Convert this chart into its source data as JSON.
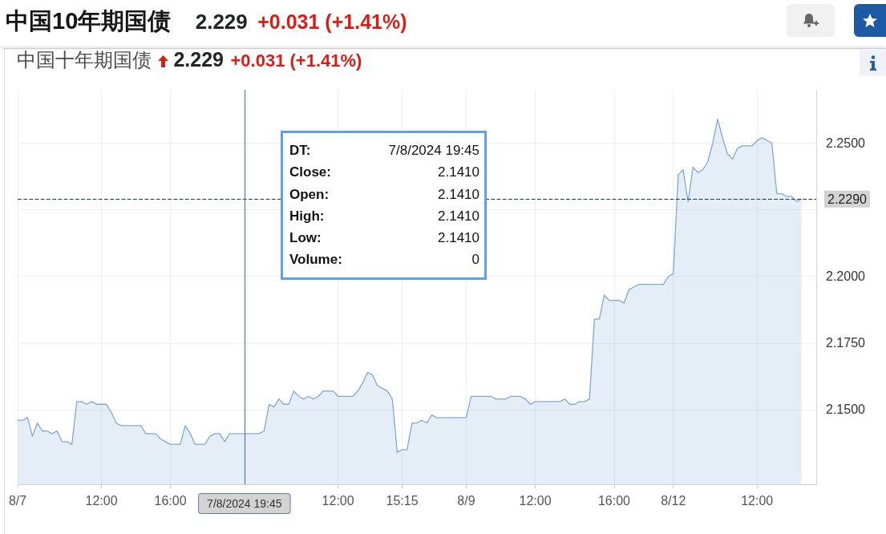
{
  "chart_data": {
    "type": "area",
    "title": "中国10年期国债 2.229 +0.031 (+1.41%)",
    "subtitle": "中国十年期国债 2.229 +0.031 (+1.41%)",
    "annotations": [
      "DT: 7/8/2024 19:45",
      "Close: 2.1410",
      "Open: 2.1410",
      "High: 2.1410",
      "Low: 2.1410",
      "Volume: 0"
    ],
    "categories": [
      "8/7",
      null,
      null,
      null,
      null,
      null,
      null,
      null,
      null,
      null,
      null,
      null,
      null,
      null,
      null,
      null,
      null,
      "12:00",
      null,
      null,
      null,
      null,
      null,
      null,
      null,
      null,
      null,
      null,
      null,
      null,
      null,
      "16:00",
      null,
      null,
      null,
      null,
      null,
      null,
      null,
      null,
      null,
      null,
      null,
      null,
      null,
      null,
      "7/8/2024 19:45",
      null,
      null,
      null,
      null,
      null,
      null,
      null,
      null,
      null,
      null,
      null,
      null,
      null,
      null,
      null,
      null,
      null,
      null,
      "12:00",
      null,
      null,
      null,
      null,
      null,
      null,
      null,
      null,
      null,
      null,
      null,
      null,
      "15:15",
      null,
      null,
      null,
      null,
      null,
      null,
      null,
      null,
      null,
      null,
      null,
      null,
      "8/9",
      null,
      null,
      null,
      null,
      null,
      null,
      null,
      null,
      null,
      null,
      null,
      null,
      null,
      "12:00",
      null,
      null,
      null,
      null,
      null,
      null,
      null,
      null,
      null,
      null,
      null,
      null,
      null,
      null,
      null,
      "16:00",
      null,
      null,
      null,
      null,
      null,
      null,
      null,
      null,
      null,
      null,
      null,
      "8/12",
      null,
      null,
      null,
      null,
      null,
      null,
      null,
      null,
      null,
      null,
      null,
      null,
      null,
      null,
      null,
      null,
      "12:00",
      null,
      null,
      null,
      null,
      null,
      null,
      null,
      null,
      null
    ],
    "series": [
      {
        "color": "#7eaad1",
        "values": [
          2.146,
          2.146,
          2.147,
          2.14,
          2.145,
          2.142,
          2.142,
          2.141,
          2.142,
          2.138,
          2.138,
          2.137,
          2.153,
          2.153,
          2.152,
          2.153,
          2.152,
          2.152,
          2.152,
          2.149,
          2.145,
          2.144,
          2.144,
          2.144,
          2.144,
          2.144,
          2.141,
          2.141,
          2.141,
          2.139,
          2.138,
          2.137,
          2.137,
          2.137,
          2.144,
          2.141,
          2.137,
          2.137,
          2.137,
          2.14,
          2.141,
          2.141,
          2.138,
          2.141,
          2.141,
          2.141,
          2.141,
          2.141,
          2.141,
          2.141,
          2.142,
          2.152,
          2.151,
          2.154,
          2.152,
          2.152,
          2.157,
          2.155,
          2.154,
          2.155,
          2.154,
          2.155,
          2.157,
          2.157,
          2.157,
          2.155,
          2.155,
          2.155,
          2.155,
          2.157,
          2.16,
          2.164,
          2.163,
          2.159,
          2.158,
          2.157,
          2.154,
          2.134,
          2.135,
          2.135,
          2.145,
          2.145,
          2.146,
          2.145,
          2.148,
          2.147,
          2.147,
          2.147,
          2.147,
          2.147,
          2.147,
          2.147,
          2.155,
          2.155,
          2.155,
          2.155,
          2.155,
          2.154,
          2.154,
          2.154,
          2.155,
          2.155,
          2.155,
          2.154,
          2.152,
          2.153,
          2.153,
          2.153,
          2.153,
          2.153,
          2.153,
          2.154,
          2.152,
          2.152,
          2.153,
          2.153,
          2.154,
          2.184,
          2.184,
          2.193,
          2.191,
          2.191,
          2.191,
          2.19,
          2.195,
          2.196,
          2.197,
          2.197,
          2.197,
          2.197,
          2.197,
          2.197,
          2.2,
          2.201,
          2.238,
          2.24,
          2.228,
          2.241,
          2.239,
          2.24,
          2.243,
          2.25,
          2.259,
          2.252,
          2.246,
          2.244,
          2.248,
          2.249,
          2.249,
          2.249,
          2.251,
          2.252,
          2.251,
          2.25,
          2.231,
          2.231,
          2.23,
          2.23,
          2.228,
          2.229
        ]
      }
    ],
    "ylim": [
      2.122,
      2.27
    ],
    "yticks": [
      {
        "value": 2.15,
        "label": "2.1500"
      },
      {
        "value": 2.175,
        "label": "2.1750"
      },
      {
        "value": 2.2,
        "label": "2.2000"
      },
      {
        "value": 2.225,
        "label": null
      },
      {
        "value": 2.25,
        "label": "2.2500"
      }
    ],
    "grid": true,
    "marker": "none",
    "line_style": "solid",
    "ref_lines": [
      {
        "axis": "y",
        "value": 2.229,
        "label": "2.2290",
        "color": "#1d3557",
        "line_style": "dashed"
      },
      {
        "axis": "x",
        "value": "7/8/2024 19:45",
        "color": "#4a7db3"
      }
    ]
  }
}
